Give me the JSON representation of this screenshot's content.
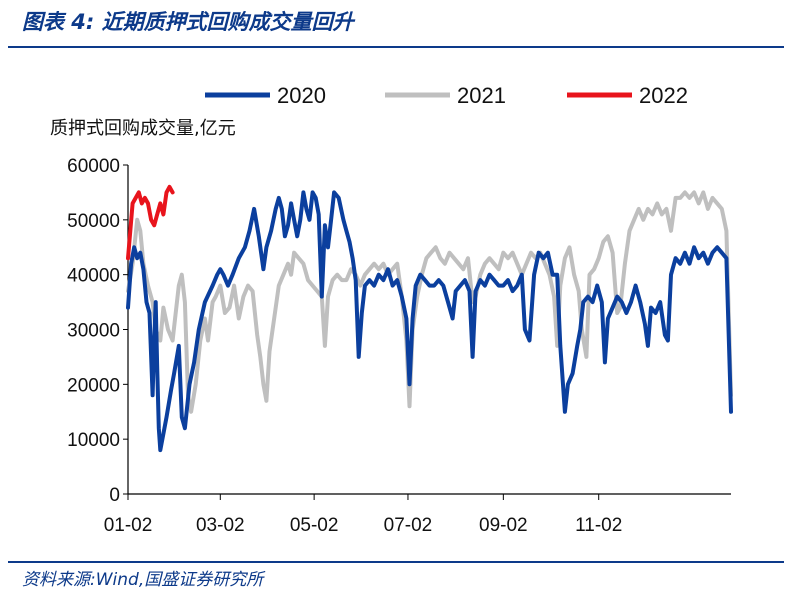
{
  "header": {
    "title": "图表 4:  近期质押式回购成交量回升"
  },
  "footer": {
    "source": "资料来源:Wind,国盛证券研究所"
  },
  "colors": {
    "2020": "#0b3f9e",
    "2021": "#bfbfbf",
    "2022": "#e8141c",
    "title": "#0d3a8a"
  },
  "chart_data": {
    "type": "line",
    "title": "",
    "ylabel": "质押式回购成交量,亿元",
    "xlabel": "",
    "ylim": [
      0,
      60000
    ],
    "yticks": [
      "0",
      "10000",
      "20000",
      "30000",
      "40000",
      "50000",
      "60000"
    ],
    "xtick_labels": [
      "01-02",
      "03-02",
      "05-02",
      "07-02",
      "09-02",
      "11-02"
    ],
    "legend_position": "top",
    "grid": false,
    "x_unit": "day of year (01-02 = 0)",
    "series": [
      {
        "name": "2020",
        "color": "#0b3f9e",
        "points": [
          [
            0,
            34000
          ],
          [
            2,
            42000
          ],
          [
            4,
            45000
          ],
          [
            6,
            43000
          ],
          [
            8,
            44000
          ],
          [
            10,
            41000
          ],
          [
            12,
            35000
          ],
          [
            14,
            33000
          ],
          [
            16,
            18000
          ],
          [
            17,
            28000
          ],
          [
            18,
            35000
          ],
          [
            19,
            23000
          ],
          [
            20,
            12000
          ],
          [
            21,
            8000
          ],
          [
            23,
            11000
          ],
          [
            25,
            14000
          ],
          [
            28,
            19000
          ],
          [
            30,
            22000
          ],
          [
            33,
            27000
          ],
          [
            35,
            14000
          ],
          [
            37,
            12000
          ],
          [
            40,
            20000
          ],
          [
            43,
            24000
          ],
          [
            46,
            30000
          ],
          [
            50,
            35000
          ],
          [
            55,
            38000
          ],
          [
            58,
            40000
          ],
          [
            60,
            41000
          ],
          [
            62,
            40000
          ],
          [
            65,
            38000
          ],
          [
            68,
            40000
          ],
          [
            72,
            43000
          ],
          [
            76,
            45000
          ],
          [
            79,
            48000
          ],
          [
            82,
            52000
          ],
          [
            85,
            47000
          ],
          [
            88,
            41000
          ],
          [
            90,
            45000
          ],
          [
            93,
            48000
          ],
          [
            96,
            52000
          ],
          [
            98,
            54000
          ],
          [
            100,
            52000
          ],
          [
            102,
            47000
          ],
          [
            104,
            49000
          ],
          [
            106,
            53000
          ],
          [
            108,
            50000
          ],
          [
            110,
            47000
          ],
          [
            112,
            50000
          ],
          [
            114,
            55000
          ],
          [
            116,
            52000
          ],
          [
            118,
            50000
          ],
          [
            120,
            55000
          ],
          [
            122,
            54000
          ],
          [
            124,
            51000
          ],
          [
            126,
            36000
          ],
          [
            128,
            49000
          ],
          [
            130,
            45000
          ],
          [
            132,
            50000
          ],
          [
            134,
            55000
          ],
          [
            137,
            54000
          ],
          [
            140,
            50000
          ],
          [
            142,
            48000
          ],
          [
            144,
            46000
          ],
          [
            146,
            43000
          ],
          [
            148,
            39000
          ],
          [
            150,
            25000
          ],
          [
            152,
            33000
          ],
          [
            154,
            38000
          ],
          [
            157,
            39000
          ],
          [
            160,
            38000
          ],
          [
            163,
            40000
          ],
          [
            166,
            39000
          ],
          [
            169,
            41000
          ],
          [
            172,
            38000
          ],
          [
            175,
            39000
          ],
          [
            178,
            36000
          ],
          [
            181,
            32000
          ],
          [
            183,
            20000
          ],
          [
            185,
            32000
          ],
          [
            187,
            38000
          ],
          [
            190,
            40000
          ],
          [
            193,
            39000
          ],
          [
            196,
            38000
          ],
          [
            199,
            38000
          ],
          [
            202,
            39000
          ],
          [
            205,
            38000
          ],
          [
            208,
            35000
          ],
          [
            211,
            32000
          ],
          [
            213,
            37000
          ],
          [
            216,
            38000
          ],
          [
            219,
            39000
          ],
          [
            222,
            37000
          ],
          [
            224,
            25000
          ],
          [
            226,
            37000
          ],
          [
            229,
            39000
          ],
          [
            232,
            38000
          ],
          [
            235,
            40000
          ],
          [
            238,
            39000
          ],
          [
            241,
            38000
          ],
          [
            244,
            38000
          ],
          [
            247,
            39000
          ],
          [
            250,
            37000
          ],
          [
            253,
            38000
          ],
          [
            256,
            40000
          ],
          [
            258,
            30000
          ],
          [
            261,
            28000
          ],
          [
            264,
            40000
          ],
          [
            267,
            44000
          ],
          [
            270,
            43000
          ],
          [
            273,
            44000
          ],
          [
            276,
            40000
          ],
          [
            279,
            40000
          ],
          [
            281,
            27000
          ],
          [
            284,
            15000
          ],
          [
            286,
            20000
          ],
          [
            289,
            22000
          ],
          [
            292,
            27000
          ],
          [
            294,
            30000
          ],
          [
            296,
            35000
          ],
          [
            299,
            36000
          ],
          [
            302,
            35000
          ],
          [
            305,
            38000
          ],
          [
            308,
            35000
          ],
          [
            310,
            24000
          ],
          [
            312,
            32000
          ],
          [
            315,
            34000
          ],
          [
            318,
            36000
          ],
          [
            321,
            35000
          ],
          [
            324,
            33000
          ],
          [
            327,
            35000
          ],
          [
            330,
            38000
          ],
          [
            333,
            35000
          ],
          [
            336,
            31000
          ],
          [
            338,
            27000
          ],
          [
            340,
            34000
          ],
          [
            343,
            33000
          ],
          [
            346,
            35000
          ],
          [
            349,
            29000
          ],
          [
            351,
            28000
          ],
          [
            353,
            40000
          ],
          [
            356,
            43000
          ],
          [
            359,
            42000
          ],
          [
            362,
            44000
          ],
          [
            365,
            42000
          ],
          [
            368,
            45000
          ],
          [
            371,
            43000
          ],
          [
            374,
            44000
          ],
          [
            377,
            42000
          ],
          [
            380,
            44000
          ],
          [
            383,
            45000
          ],
          [
            386,
            44000
          ],
          [
            389,
            43000
          ],
          [
            392,
            15000
          ]
        ]
      },
      {
        "name": "2021",
        "color": "#bfbfbf",
        "points": [
          [
            0,
            37000
          ],
          [
            3,
            42000
          ],
          [
            6,
            50000
          ],
          [
            8,
            48000
          ],
          [
            10,
            42000
          ],
          [
            13,
            38000
          ],
          [
            16,
            35000
          ],
          [
            18,
            30000
          ],
          [
            21,
            28000
          ],
          [
            23,
            34000
          ],
          [
            26,
            30000
          ],
          [
            29,
            28000
          ],
          [
            31,
            33000
          ],
          [
            33,
            38000
          ],
          [
            35,
            40000
          ],
          [
            37,
            35000
          ],
          [
            39,
            18000
          ],
          [
            41,
            15000
          ],
          [
            44,
            20000
          ],
          [
            47,
            28000
          ],
          [
            50,
            32000
          ],
          [
            52,
            28000
          ],
          [
            55,
            35000
          ],
          [
            57,
            36000
          ],
          [
            60,
            38000
          ],
          [
            63,
            33000
          ],
          [
            66,
            34000
          ],
          [
            69,
            38000
          ],
          [
            72,
            32000
          ],
          [
            75,
            36000
          ],
          [
            78,
            38000
          ],
          [
            81,
            37000
          ],
          [
            84,
            29000
          ],
          [
            86,
            25000
          ],
          [
            88,
            20000
          ],
          [
            90,
            17000
          ],
          [
            92,
            26000
          ],
          [
            94,
            30000
          ],
          [
            96,
            34000
          ],
          [
            98,
            38000
          ],
          [
            101,
            40000
          ],
          [
            104,
            42000
          ],
          [
            106,
            40000
          ],
          [
            108,
            44000
          ],
          [
            111,
            43000
          ],
          [
            114,
            42000
          ],
          [
            117,
            39000
          ],
          [
            120,
            38000
          ],
          [
            123,
            37000
          ],
          [
            126,
            36000
          ],
          [
            128,
            27000
          ],
          [
            130,
            36000
          ],
          [
            133,
            39000
          ],
          [
            136,
            40000
          ],
          [
            139,
            39000
          ],
          [
            142,
            39000
          ],
          [
            145,
            41000
          ],
          [
            148,
            40000
          ],
          [
            151,
            38000
          ],
          [
            154,
            40000
          ],
          [
            157,
            41000
          ],
          [
            160,
            42000
          ],
          [
            163,
            41000
          ],
          [
            166,
            42000
          ],
          [
            169,
            40000
          ],
          [
            172,
            41000
          ],
          [
            175,
            42000
          ],
          [
            178,
            36000
          ],
          [
            181,
            28000
          ],
          [
            183,
            16000
          ],
          [
            185,
            30000
          ],
          [
            188,
            36000
          ],
          [
            191,
            40000
          ],
          [
            194,
            43000
          ],
          [
            197,
            44000
          ],
          [
            200,
            45000
          ],
          [
            203,
            43000
          ],
          [
            206,
            42000
          ],
          [
            209,
            44000
          ],
          [
            212,
            43000
          ],
          [
            215,
            42000
          ],
          [
            218,
            41000
          ],
          [
            221,
            43000
          ],
          [
            224,
            35000
          ],
          [
            226,
            36000
          ],
          [
            229,
            40000
          ],
          [
            232,
            42000
          ],
          [
            235,
            43000
          ],
          [
            238,
            42000
          ],
          [
            241,
            41000
          ],
          [
            244,
            44000
          ],
          [
            247,
            43000
          ],
          [
            250,
            44000
          ],
          [
            253,
            42000
          ],
          [
            256,
            40000
          ],
          [
            259,
            42000
          ],
          [
            262,
            44000
          ],
          [
            265,
            43000
          ],
          [
            268,
            44000
          ],
          [
            271,
            42000
          ],
          [
            274,
            40000
          ],
          [
            277,
            36000
          ],
          [
            279,
            27000
          ],
          [
            281,
            38000
          ],
          [
            284,
            43000
          ],
          [
            287,
            45000
          ],
          [
            290,
            40000
          ],
          [
            293,
            37000
          ],
          [
            295,
            30000
          ],
          [
            298,
            25000
          ],
          [
            300,
            40000
          ],
          [
            303,
            41000
          ],
          [
            306,
            43000
          ],
          [
            309,
            46000
          ],
          [
            312,
            47000
          ],
          [
            315,
            44000
          ],
          [
            318,
            33000
          ],
          [
            320,
            34000
          ],
          [
            323,
            42000
          ],
          [
            326,
            48000
          ],
          [
            329,
            50000
          ],
          [
            332,
            52000
          ],
          [
            335,
            50000
          ],
          [
            338,
            52000
          ],
          [
            341,
            51000
          ],
          [
            344,
            53000
          ],
          [
            347,
            51000
          ],
          [
            350,
            52000
          ],
          [
            353,
            48000
          ],
          [
            356,
            54000
          ],
          [
            359,
            54000
          ],
          [
            362,
            55000
          ],
          [
            365,
            54000
          ],
          [
            368,
            55000
          ],
          [
            371,
            53000
          ],
          [
            374,
            55000
          ],
          [
            377,
            52000
          ],
          [
            380,
            54000
          ],
          [
            383,
            53000
          ],
          [
            386,
            52000
          ],
          [
            389,
            48000
          ],
          [
            392,
            18000
          ]
        ]
      },
      {
        "name": "2022",
        "color": "#e8141c",
        "points": [
          [
            0,
            43000
          ],
          [
            3,
            53000
          ],
          [
            5,
            54000
          ],
          [
            7,
            55000
          ],
          [
            9,
            53000
          ],
          [
            11,
            54000
          ],
          [
            13,
            53000
          ],
          [
            15,
            50000
          ],
          [
            17,
            49000
          ],
          [
            19,
            51000
          ],
          [
            21,
            53000
          ],
          [
            23,
            51000
          ],
          [
            25,
            55000
          ],
          [
            27,
            56000
          ],
          [
            29,
            55000
          ]
        ]
      }
    ]
  }
}
